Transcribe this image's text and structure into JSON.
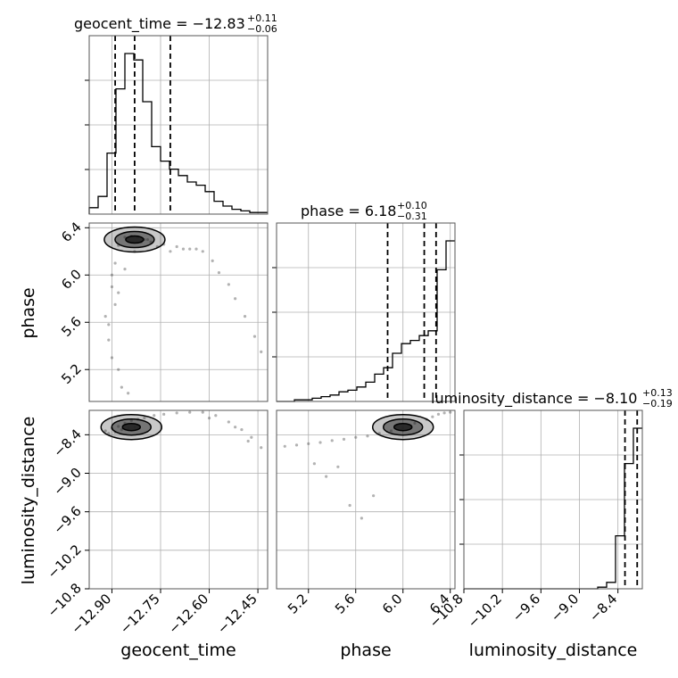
{
  "chart_data": {
    "type": "corner",
    "parameters": [
      "geocent_time",
      "phase",
      "luminosity_distance"
    ],
    "axis_labels": {
      "x": [
        "geocent_time",
        "phase",
        "luminosity_distance"
      ],
      "y": [
        "phase",
        "luminosity_distance"
      ]
    },
    "ranges": {
      "geocent_time": [
        -12.97,
        -12.42
      ],
      "phase": [
        4.93,
        6.44
      ],
      "luminosity_distance": [
        -10.8,
        -8.02
      ]
    },
    "ticks": {
      "geocent_time": {
        "values": [
          -12.9,
          -12.75,
          -12.6,
          -12.45
        ],
        "labels": [
          "−12.90",
          "−12.75",
          "−12.60",
          "−12.45"
        ]
      },
      "phase": {
        "values": [
          5.2,
          5.6,
          6.0,
          6.4
        ],
        "labels": [
          "5.2",
          "5.6",
          "6.0",
          "6.4"
        ]
      },
      "luminosity_distance": {
        "values": [
          -10.8,
          -10.2,
          -9.6,
          -9.0,
          -8.4
        ],
        "labels": [
          "−10.8",
          "−10.2",
          "−9.6",
          "−9.0",
          "−8.4"
        ]
      }
    },
    "titles": [
      {
        "param": "geocent_time",
        "text": "geocent_time = −12.83",
        "upper": "+0.11",
        "lower": "−0.06"
      },
      {
        "param": "phase",
        "text": "phase = 6.18",
        "upper": "+0.10",
        "lower": "−0.31"
      },
      {
        "param": "luminosity_distance",
        "text": "luminosity_distance = −8.10",
        "upper": "+0.13",
        "lower": "−0.19"
      }
    ],
    "quantiles": {
      "geocent_time": [
        -12.89,
        -12.83,
        -12.72
      ],
      "phase": [
        5.87,
        6.18,
        6.28
      ],
      "luminosity_distance": [
        -8.29,
        -8.1,
        -7.97
      ]
    },
    "histograms": {
      "geocent_time": {
        "edges_range": [
          -12.97,
          -12.42
        ],
        "bins": 20,
        "counts": [
          0.04,
          0.11,
          0.38,
          0.78,
          1.0,
          0.96,
          0.7,
          0.42,
          0.33,
          0.28,
          0.24,
          0.2,
          0.18,
          0.14,
          0.08,
          0.05,
          0.03,
          0.02,
          0.01,
          0.01
        ]
      },
      "phase": {
        "edges_range": [
          4.93,
          6.44
        ],
        "bins": 20,
        "counts": [
          0.0,
          0.0,
          0.01,
          0.01,
          0.02,
          0.03,
          0.04,
          0.06,
          0.07,
          0.09,
          0.12,
          0.17,
          0.21,
          0.3,
          0.36,
          0.38,
          0.41,
          0.44,
          0.82,
          1.0
        ]
      },
      "luminosity_distance": {
        "edges_range": [
          -10.8,
          -8.02
        ],
        "bins": 20,
        "counts": [
          0.0,
          0.0,
          0.0,
          0.0,
          0.0,
          0.0,
          0.0,
          0.0,
          0.0,
          0.0,
          0.0,
          0.0,
          0.0,
          0.0,
          0.0,
          0.01,
          0.04,
          0.33,
          0.78,
          1.0
        ]
      }
    },
    "scatter": {
      "phase_vs_geocent_time": {
        "x": [
          -12.92,
          -12.9,
          -12.89,
          -12.88,
          -12.86,
          -12.84,
          -12.82,
          -12.8,
          -12.78,
          -12.74,
          -12.7,
          -12.66,
          -12.62,
          -12.59,
          -12.57,
          -12.54,
          -12.52,
          -12.49,
          -12.46,
          -12.44,
          -12.91,
          -12.9,
          -12.88,
          -12.87,
          -12.85,
          -12.89,
          -12.86,
          -12.83,
          -12.81,
          -12.79,
          -12.76,
          -12.72,
          -12.68,
          -12.64,
          -12.91,
          -12.9,
          -12.88
        ],
        "y": [
          5.65,
          5.9,
          6.1,
          6.25,
          6.32,
          6.33,
          6.32,
          6.3,
          6.28,
          6.26,
          6.24,
          6.22,
          6.2,
          6.12,
          6.02,
          5.92,
          5.8,
          5.65,
          5.48,
          5.35,
          5.45,
          5.3,
          5.2,
          5.05,
          5.0,
          5.75,
          6.05,
          6.2,
          6.28,
          6.3,
          6.24,
          6.2,
          6.22,
          6.22,
          5.58,
          6.0,
          5.85
        ]
      },
      "luminosity_distance_vs_geocent_time": {
        "x": [
          -12.92,
          -12.9,
          -12.88,
          -12.86,
          -12.84,
          -12.82,
          -12.8,
          -12.77,
          -12.74,
          -12.7,
          -12.66,
          -12.62,
          -12.58,
          -12.54,
          -12.5,
          -12.47,
          -12.44,
          -12.91,
          -12.89,
          -12.87,
          -12.85,
          -12.83,
          -12.6,
          -12.52,
          -12.48
        ],
        "y": [
          -8.34,
          -8.3,
          -8.27,
          -8.22,
          -8.18,
          -8.16,
          -8.14,
          -8.1,
          -8.08,
          -8.06,
          -8.05,
          -8.05,
          -8.1,
          -8.2,
          -8.32,
          -8.44,
          -8.6,
          -8.38,
          -8.36,
          -8.32,
          -8.3,
          -8.28,
          -8.14,
          -8.28,
          -8.5
        ]
      },
      "luminosity_distance_vs_phase": {
        "x": [
          5.0,
          5.1,
          5.2,
          5.3,
          5.4,
          5.5,
          5.6,
          5.7,
          5.8,
          5.9,
          6.0,
          6.1,
          6.2,
          6.25,
          6.3,
          6.35,
          6.4,
          5.45,
          5.35,
          5.25,
          5.55,
          5.65,
          5.75
        ],
        "y": [
          -8.58,
          -8.56,
          -8.54,
          -8.52,
          -8.49,
          -8.47,
          -8.44,
          -8.42,
          -8.38,
          -8.34,
          -8.29,
          -8.22,
          -8.16,
          -8.12,
          -8.08,
          -8.06,
          -8.05,
          -8.9,
          -9.05,
          -8.85,
          -9.5,
          -9.7,
          -9.35
        ]
      }
    },
    "contours": {
      "phase_vs_geocent_time": {
        "center": [
          -12.83,
          6.3
        ],
        "levels": 3
      },
      "luminosity_distance_vs_geocent_time": {
        "center": [
          -12.84,
          -8.28
        ],
        "levels": 3
      },
      "luminosity_distance_vs_phase": {
        "center": [
          6.0,
          -8.28
        ],
        "levels": 3
      }
    },
    "grid": true
  },
  "colors": {
    "axes": "#000000",
    "grid": "#b0b0b0",
    "scatter": "#555555",
    "contour_fill": "#222222"
  }
}
